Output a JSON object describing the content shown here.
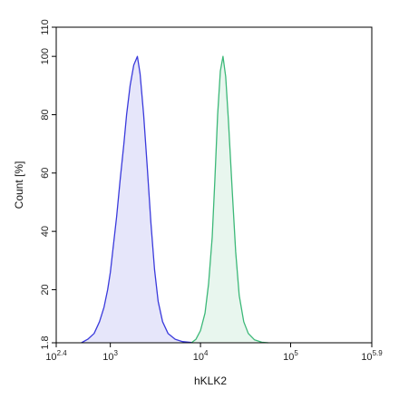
{
  "chart_data": {
    "type": "area",
    "xlabel": "hKLK2",
    "ylabel": "Count [%]",
    "x_scale": "log10",
    "xlim_exponent": [
      2.4,
      5.9
    ],
    "ylim": [
      1.8,
      110
    ],
    "x_ticks": [
      {
        "exponent": 2.4,
        "base": "10",
        "sup": "2.4"
      },
      {
        "exponent": 3,
        "base": "10",
        "sup": "3"
      },
      {
        "exponent": 4,
        "base": "10",
        "sup": "4"
      },
      {
        "exponent": 5,
        "base": "10",
        "sup": "5"
      },
      {
        "exponent": 5.9,
        "base": "10",
        "sup": "5.9"
      }
    ],
    "y_ticks": [
      {
        "value": 1.8,
        "label": "1.8"
      },
      {
        "value": 20,
        "label": "20"
      },
      {
        "value": 40,
        "label": "40"
      },
      {
        "value": 60,
        "label": "60"
      },
      {
        "value": 80,
        "label": "80"
      },
      {
        "value": 100,
        "label": "100"
      },
      {
        "value": 110,
        "label": "110"
      }
    ],
    "grid": false,
    "series": [
      {
        "stroke": "#3a3adc",
        "fill": "#e6e6fa",
        "points": [
          [
            2.68,
            1.8
          ],
          [
            2.75,
            3
          ],
          [
            2.82,
            5
          ],
          [
            2.88,
            9
          ],
          [
            2.93,
            14
          ],
          [
            2.97,
            20
          ],
          [
            3.0,
            26
          ],
          [
            3.03,
            34
          ],
          [
            3.07,
            45
          ],
          [
            3.11,
            58
          ],
          [
            3.15,
            70
          ],
          [
            3.18,
            80
          ],
          [
            3.22,
            90
          ],
          [
            3.26,
            97
          ],
          [
            3.3,
            100
          ],
          [
            3.33,
            94
          ],
          [
            3.37,
            80
          ],
          [
            3.41,
            62
          ],
          [
            3.45,
            43
          ],
          [
            3.49,
            27
          ],
          [
            3.53,
            16
          ],
          [
            3.58,
            9
          ],
          [
            3.64,
            5
          ],
          [
            3.72,
            3
          ],
          [
            3.8,
            2.2
          ],
          [
            3.9,
            1.9
          ],
          [
            4.0,
            1.8
          ]
        ]
      },
      {
        "stroke": "#3cb878",
        "fill": "#e8f6ee",
        "points": [
          [
            3.9,
            1.8
          ],
          [
            3.95,
            3
          ],
          [
            4.0,
            6
          ],
          [
            4.05,
            12
          ],
          [
            4.09,
            22
          ],
          [
            4.13,
            38
          ],
          [
            4.16,
            58
          ],
          [
            4.19,
            80
          ],
          [
            4.22,
            95
          ],
          [
            4.25,
            100
          ],
          [
            4.28,
            93
          ],
          [
            4.31,
            78
          ],
          [
            4.35,
            55
          ],
          [
            4.39,
            33
          ],
          [
            4.43,
            18
          ],
          [
            4.48,
            9
          ],
          [
            4.53,
            5
          ],
          [
            4.6,
            2.8
          ],
          [
            4.68,
            2.0
          ],
          [
            4.75,
            1.8
          ]
        ]
      }
    ]
  }
}
